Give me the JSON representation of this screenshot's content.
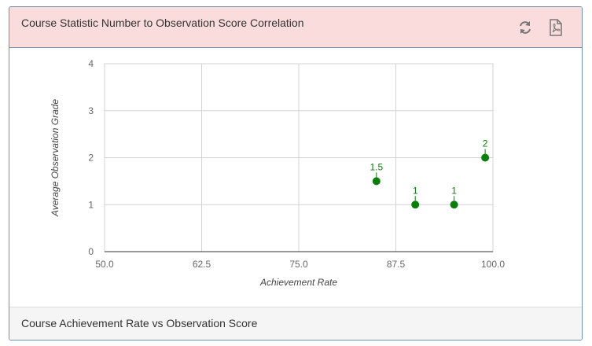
{
  "panel": {
    "title": "Course Statistic Number to Observation Score Correlation",
    "footer": "Course Achievement Rate vs Observation Score",
    "icons": [
      "refresh-icon",
      "pdf-icon"
    ]
  },
  "colors": {
    "header_bg": "#fadcdc",
    "border": "#6f8fb3",
    "point": "#0a7d0a",
    "grid": "#d3d3d3"
  },
  "chart_data": {
    "type": "scatter",
    "xlabel": "Achievement Rate",
    "ylabel": "Average Observation Grade",
    "xlim": [
      50,
      100
    ],
    "ylim": [
      0,
      4
    ],
    "xticks": [
      "50.0",
      "62.5",
      "75.0",
      "87.5",
      "100.0"
    ],
    "yticks": [
      "0",
      "1",
      "2",
      "3",
      "4"
    ],
    "grid": true,
    "points": [
      {
        "x": 85,
        "y": 1.5,
        "label": "1.5"
      },
      {
        "x": 90,
        "y": 1,
        "label": "1"
      },
      {
        "x": 95,
        "y": 1,
        "label": "1"
      },
      {
        "x": 99,
        "y": 2,
        "label": "2"
      }
    ]
  }
}
